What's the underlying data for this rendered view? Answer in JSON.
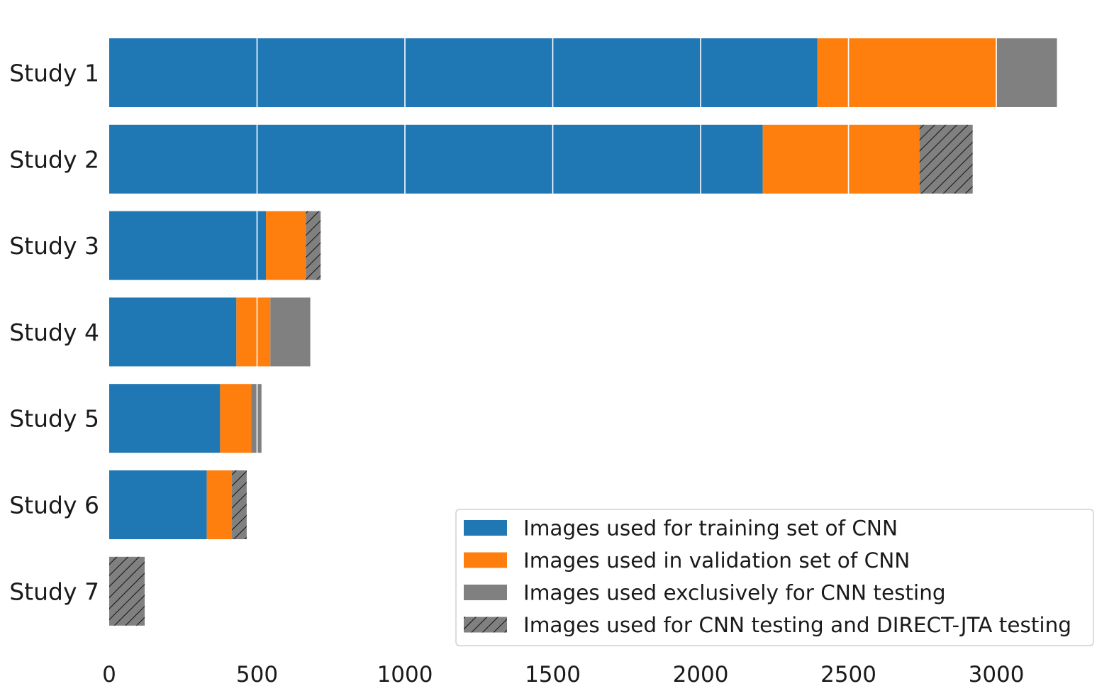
{
  "chart_data": {
    "type": "bar",
    "orientation": "horizontal",
    "stacked": true,
    "categories": [
      "Study 1",
      "Study 2",
      "Study 3",
      "Study 4",
      "Study 5",
      "Study 6",
      "Study 7"
    ],
    "series": [
      {
        "name": "Images used for training set of CNN",
        "color": "#1f77b4",
        "hatch": false,
        "values": [
          2395,
          2210,
          530,
          430,
          375,
          330,
          0
        ]
      },
      {
        "name": "Images used in validation set of CNN",
        "color": "#ff7f0e",
        "hatch": false,
        "values": [
          605,
          530,
          135,
          115,
          105,
          85,
          0
        ]
      },
      {
        "name": "Images used exclusively for CNN testing",
        "color": "#808080",
        "hatch": false,
        "values": [
          205,
          0,
          0,
          135,
          35,
          0,
          0
        ]
      },
      {
        "name": "Images used for CNN testing and DIRECT-JTA testing",
        "color": "#808080",
        "hatch": true,
        "values": [
          0,
          180,
          50,
          0,
          0,
          50,
          120
        ]
      }
    ],
    "xticks": [
      0,
      500,
      1000,
      1500,
      2000,
      2500,
      3000
    ],
    "xlim": [
      0,
      3200
    ],
    "grid": "x",
    "legend_position": "lower-right",
    "title": "",
    "xlabel": "",
    "ylabel": ""
  }
}
